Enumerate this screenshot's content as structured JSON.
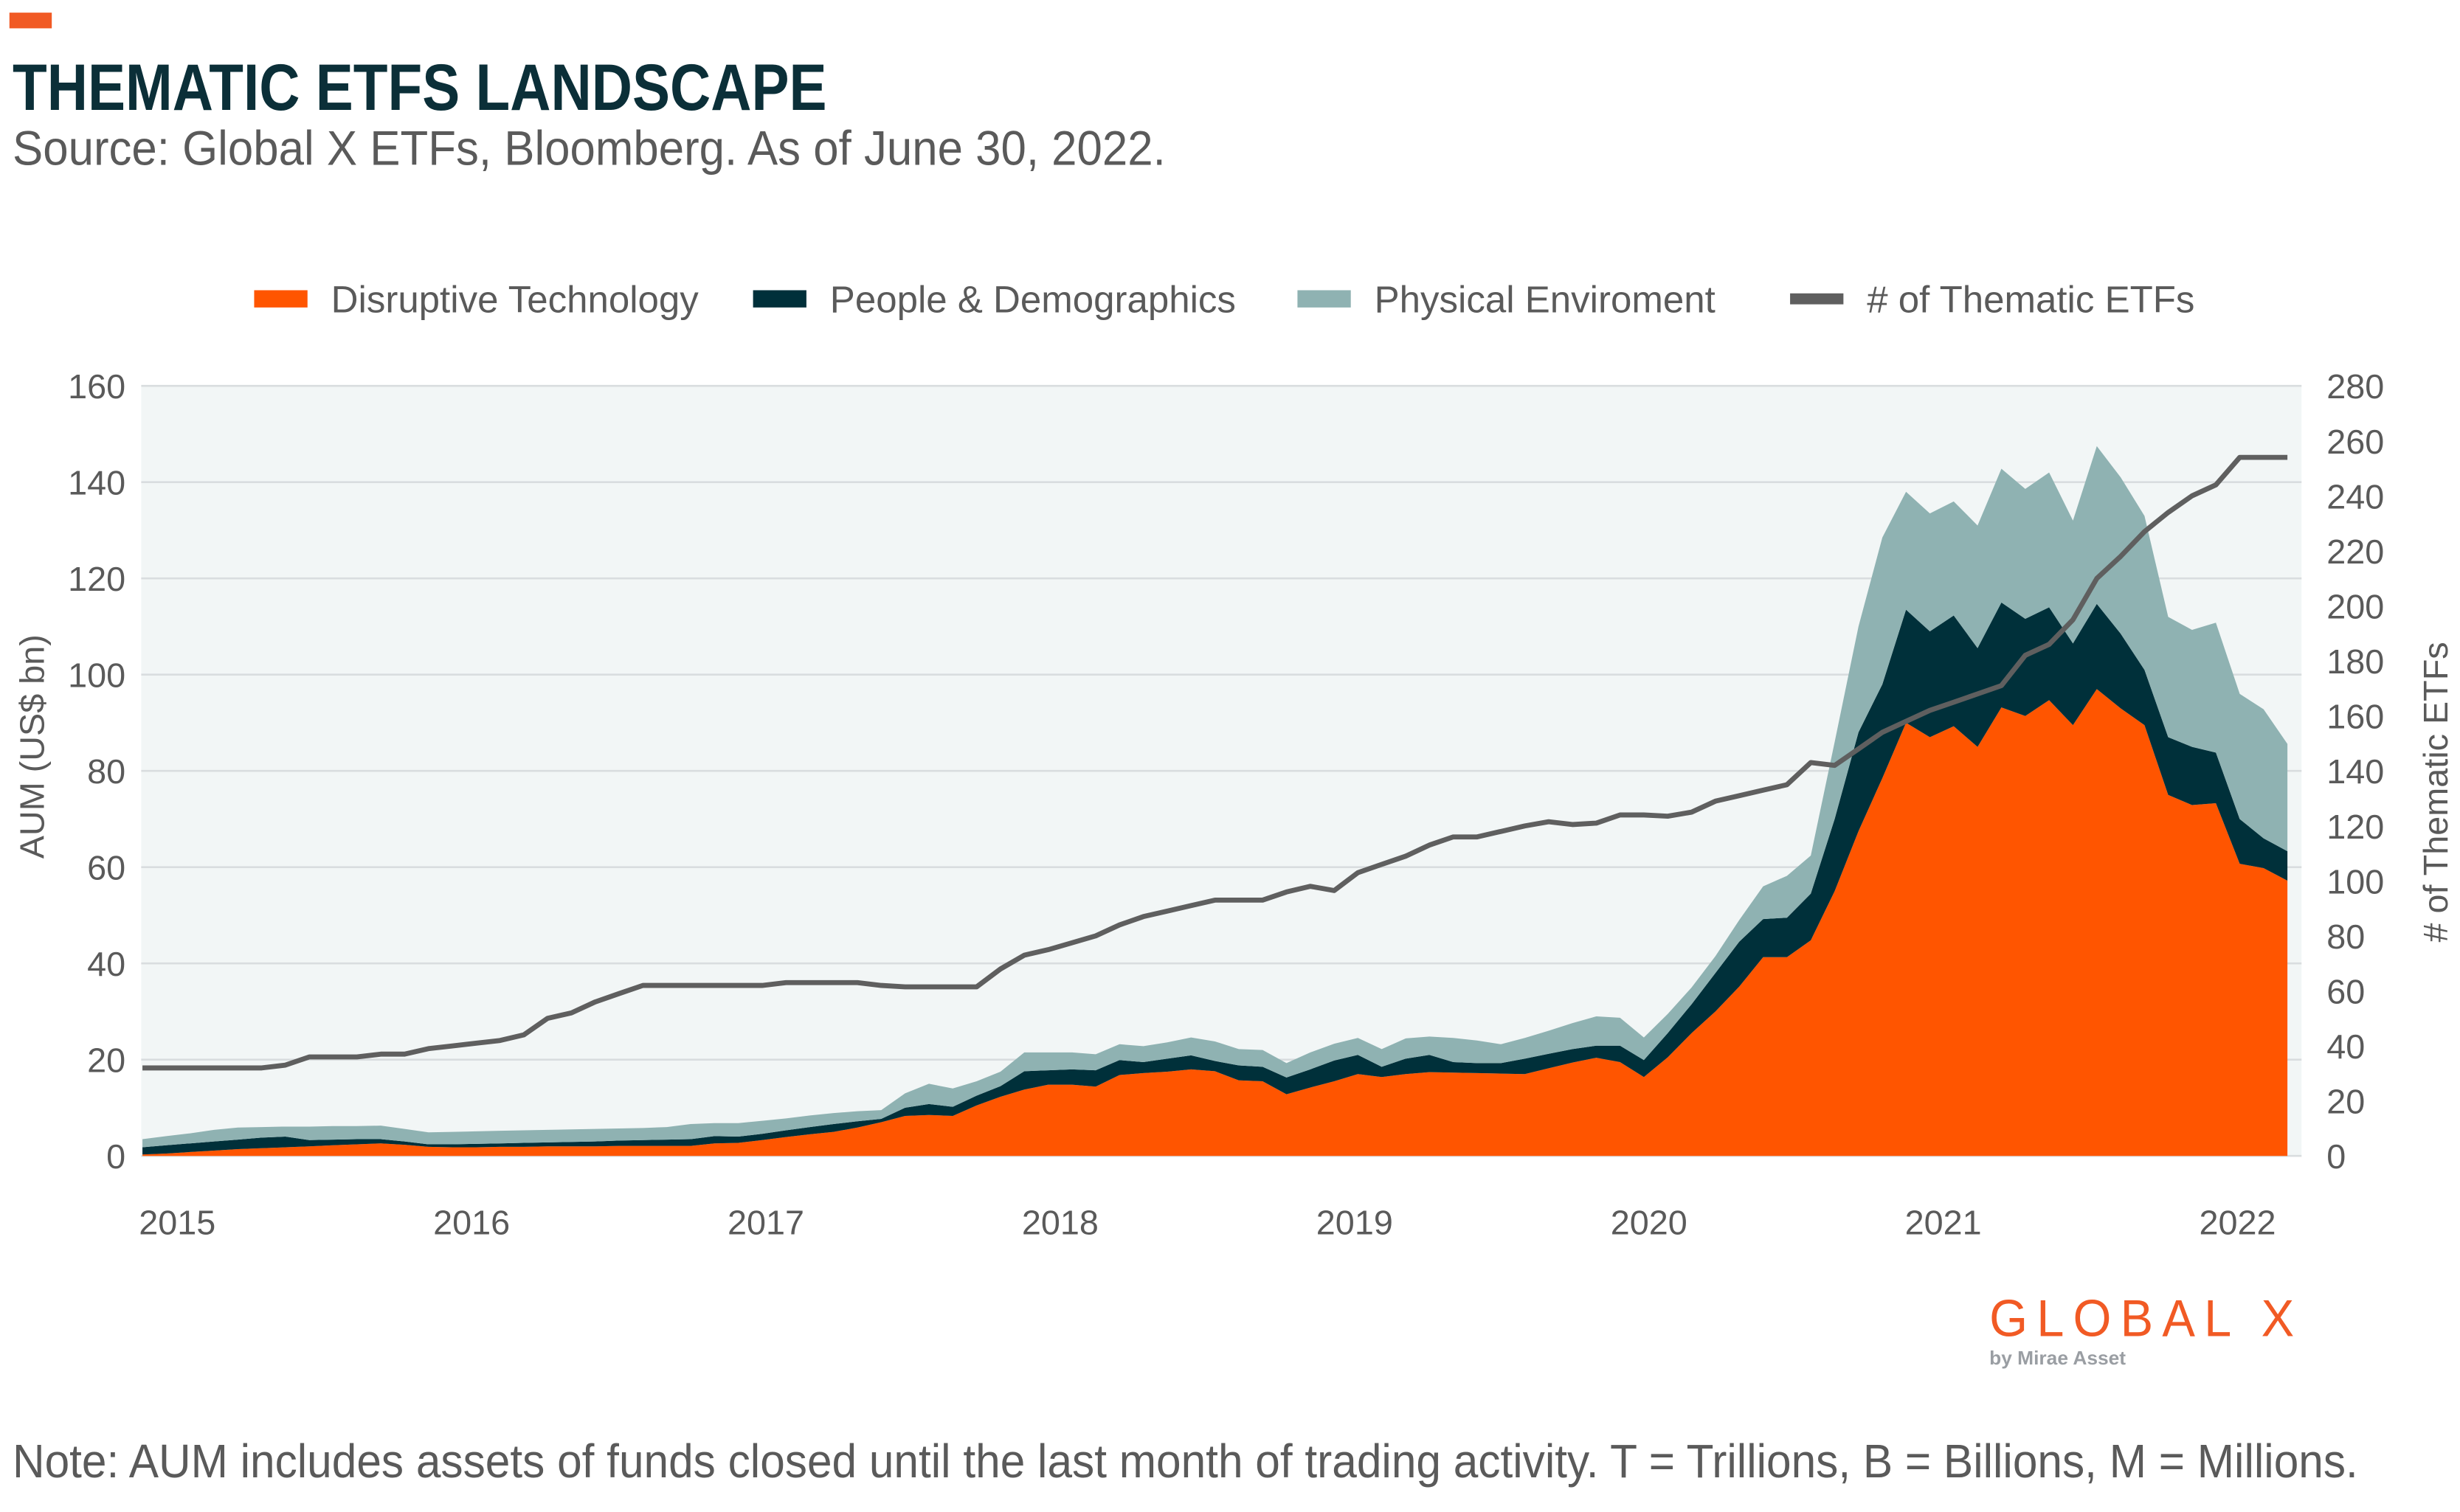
{
  "header": {
    "title": "THEMATIC ETFS LANDSCAPE",
    "subtitle": "Source: Global X ETFs, Bloomberg. As of June 30, 2022."
  },
  "footer": {
    "note": "Note: AUM includes assets of funds closed until the last month of trading activity. T = Trillions, B = Billions, M = Millions."
  },
  "logo": {
    "brand": "GLOBAL X",
    "tagline": "by Mirae Asset",
    "color": "#f15a24"
  },
  "colors": {
    "accent": "#f15a24",
    "title": "#0b2f38",
    "plot_background": "#f2f6f6",
    "gridline": "#d9dddf"
  },
  "chart_data": {
    "type": "area",
    "stacked": true,
    "frequency": "monthly",
    "start": "2014-12",
    "end": "2022-06",
    "xlabel": "",
    "ylabel": "AUM (US$ bn)",
    "y2label": "# of Thematic ETFs",
    "ylim": [
      0,
      160
    ],
    "y2lim": [
      0,
      280
    ],
    "yticks": [
      0,
      20,
      40,
      60,
      80,
      100,
      120,
      140,
      160
    ],
    "y2ticks": [
      0,
      20,
      40,
      60,
      80,
      100,
      120,
      140,
      160,
      180,
      200,
      220,
      240,
      260,
      280
    ],
    "xticks": [
      "2015",
      "2016",
      "2017",
      "2018",
      "2019",
      "2020",
      "2021",
      "2022"
    ],
    "grid": true,
    "legend_position": "top",
    "series": [
      {
        "name": "Disruptive Technology",
        "axis": "left",
        "kind": "area",
        "color": "#ff5500",
        "values": [
          0.3,
          0.5,
          0.8,
          1.1,
          1.4,
          1.6,
          1.8,
          2.0,
          2.2,
          2.4,
          2.6,
          2.3,
          1.9,
          1.8,
          1.8,
          1.9,
          1.9,
          2.0,
          2.0,
          2.0,
          2.1,
          2.1,
          2.1,
          2.1,
          2.6,
          2.7,
          3.3,
          3.9,
          4.5,
          5.0,
          5.9,
          7.0,
          8.3,
          8.5,
          8.3,
          10.5,
          12.3,
          13.8,
          14.8,
          14.8,
          14.4,
          16.8,
          17.2,
          17.5,
          18.0,
          17.6,
          15.7,
          15.5,
          12.8,
          14.2,
          15.5,
          17.0,
          16.4,
          17.0,
          17.4,
          17.3,
          17.2,
          17.1,
          17.0,
          18.2,
          19.4,
          20.4,
          19.5,
          16.4,
          20.5,
          25.5,
          30.0,
          35.2,
          41.3,
          41.3,
          44.8,
          55.0,
          67.5,
          78.5,
          90.0,
          87.0,
          89.3,
          85.0,
          93.2,
          91.4,
          94.7,
          89.5,
          97.0,
          93.0,
          89.5,
          75.0,
          72.9,
          73.3,
          60.7,
          59.8,
          57.2
        ]
      },
      {
        "name": "People & Demographics",
        "axis": "left",
        "kind": "area",
        "color": "#00303a",
        "values": [
          1.5,
          1.7,
          1.8,
          1.9,
          2.0,
          2.2,
          2.2,
          1.3,
          1.2,
          1.1,
          0.9,
          0.7,
          0.5,
          0.6,
          0.7,
          0.7,
          0.8,
          0.8,
          0.9,
          1.0,
          1.1,
          1.2,
          1.3,
          1.4,
          1.5,
          1.3,
          1.3,
          1.4,
          1.5,
          1.6,
          1.3,
          0.7,
          1.7,
          2.3,
          1.9,
          2.0,
          2.2,
          3.8,
          3.0,
          3.2,
          3.4,
          3.1,
          2.3,
          2.7,
          2.9,
          2.1,
          3.1,
          3.0,
          3.5,
          3.8,
          4.3,
          4.0,
          2.1,
          3.2,
          3.6,
          2.2,
          2.1,
          2.2,
          3.2,
          3.0,
          2.8,
          2.5,
          3.4,
          3.5,
          5.0,
          6.0,
          8.0,
          9.3,
          7.9,
          8.2,
          9.7,
          15.0,
          20.5,
          19.5,
          23.5,
          22.0,
          23.0,
          20.5,
          21.8,
          20.2,
          19.3,
          17.0,
          17.7,
          15.5,
          11.5,
          12.0,
          12.1,
          10.5,
          9.3,
          6.2,
          6.1
        ]
      },
      {
        "name": "Physical Enviroment",
        "axis": "left",
        "kind": "area",
        "color": "#8fb2b2",
        "values": [
          1.7,
          1.9,
          2.1,
          2.4,
          2.5,
          2.2,
          2.1,
          2.8,
          2.8,
          2.7,
          2.8,
          2.6,
          2.5,
          2.6,
          2.6,
          2.6,
          2.6,
          2.6,
          2.6,
          2.6,
          2.5,
          2.5,
          2.6,
          3.1,
          2.7,
          2.8,
          2.7,
          2.5,
          2.4,
          2.3,
          2.1,
          1.8,
          3.0,
          4.2,
          3.8,
          3.0,
          3.0,
          3.9,
          3.7,
          3.5,
          3.3,
          3.3,
          3.3,
          3.4,
          3.7,
          4.1,
          3.4,
          3.5,
          3.0,
          3.5,
          3.5,
          3.5,
          3.7,
          4.2,
          3.8,
          5.0,
          4.7,
          3.9,
          4.3,
          4.8,
          5.4,
          6.1,
          5.8,
          4.7,
          4.0,
          3.5,
          3.5,
          4.5,
          6.8,
          8.7,
          7.9,
          16.0,
          22.0,
          30.5,
          24.5,
          24.5,
          23.7,
          25.5,
          27.8,
          27.0,
          28.0,
          25.5,
          32.8,
          32.5,
          32.0,
          25.0,
          24.3,
          27.0,
          26.0,
          26.8,
          22.3
        ]
      },
      {
        "name": "# of Thematic ETFs",
        "axis": "right",
        "kind": "line",
        "color": "#5f5f5f",
        "values": [
          32,
          32,
          32,
          32,
          32,
          32,
          33,
          36,
          36,
          36,
          37,
          37,
          39,
          40,
          41,
          42,
          44,
          50,
          52,
          56,
          59,
          62,
          62,
          62,
          62,
          62,
          62,
          63,
          63,
          63,
          63,
          62,
          61.5,
          61.5,
          61.5,
          61.5,
          68,
          73,
          75,
          77.5,
          80,
          84,
          87,
          89,
          91,
          93,
          93,
          93,
          96,
          98,
          96.5,
          103,
          106,
          109,
          113,
          116,
          116,
          118,
          120,
          121.5,
          120.5,
          121,
          124,
          124,
          123.5,
          125,
          129,
          131,
          133,
          135,
          143,
          142,
          148,
          154,
          158,
          162,
          165,
          168,
          171,
          182,
          186,
          195,
          210,
          218,
          227,
          234,
          240,
          244,
          254,
          254,
          254
        ]
      }
    ]
  }
}
